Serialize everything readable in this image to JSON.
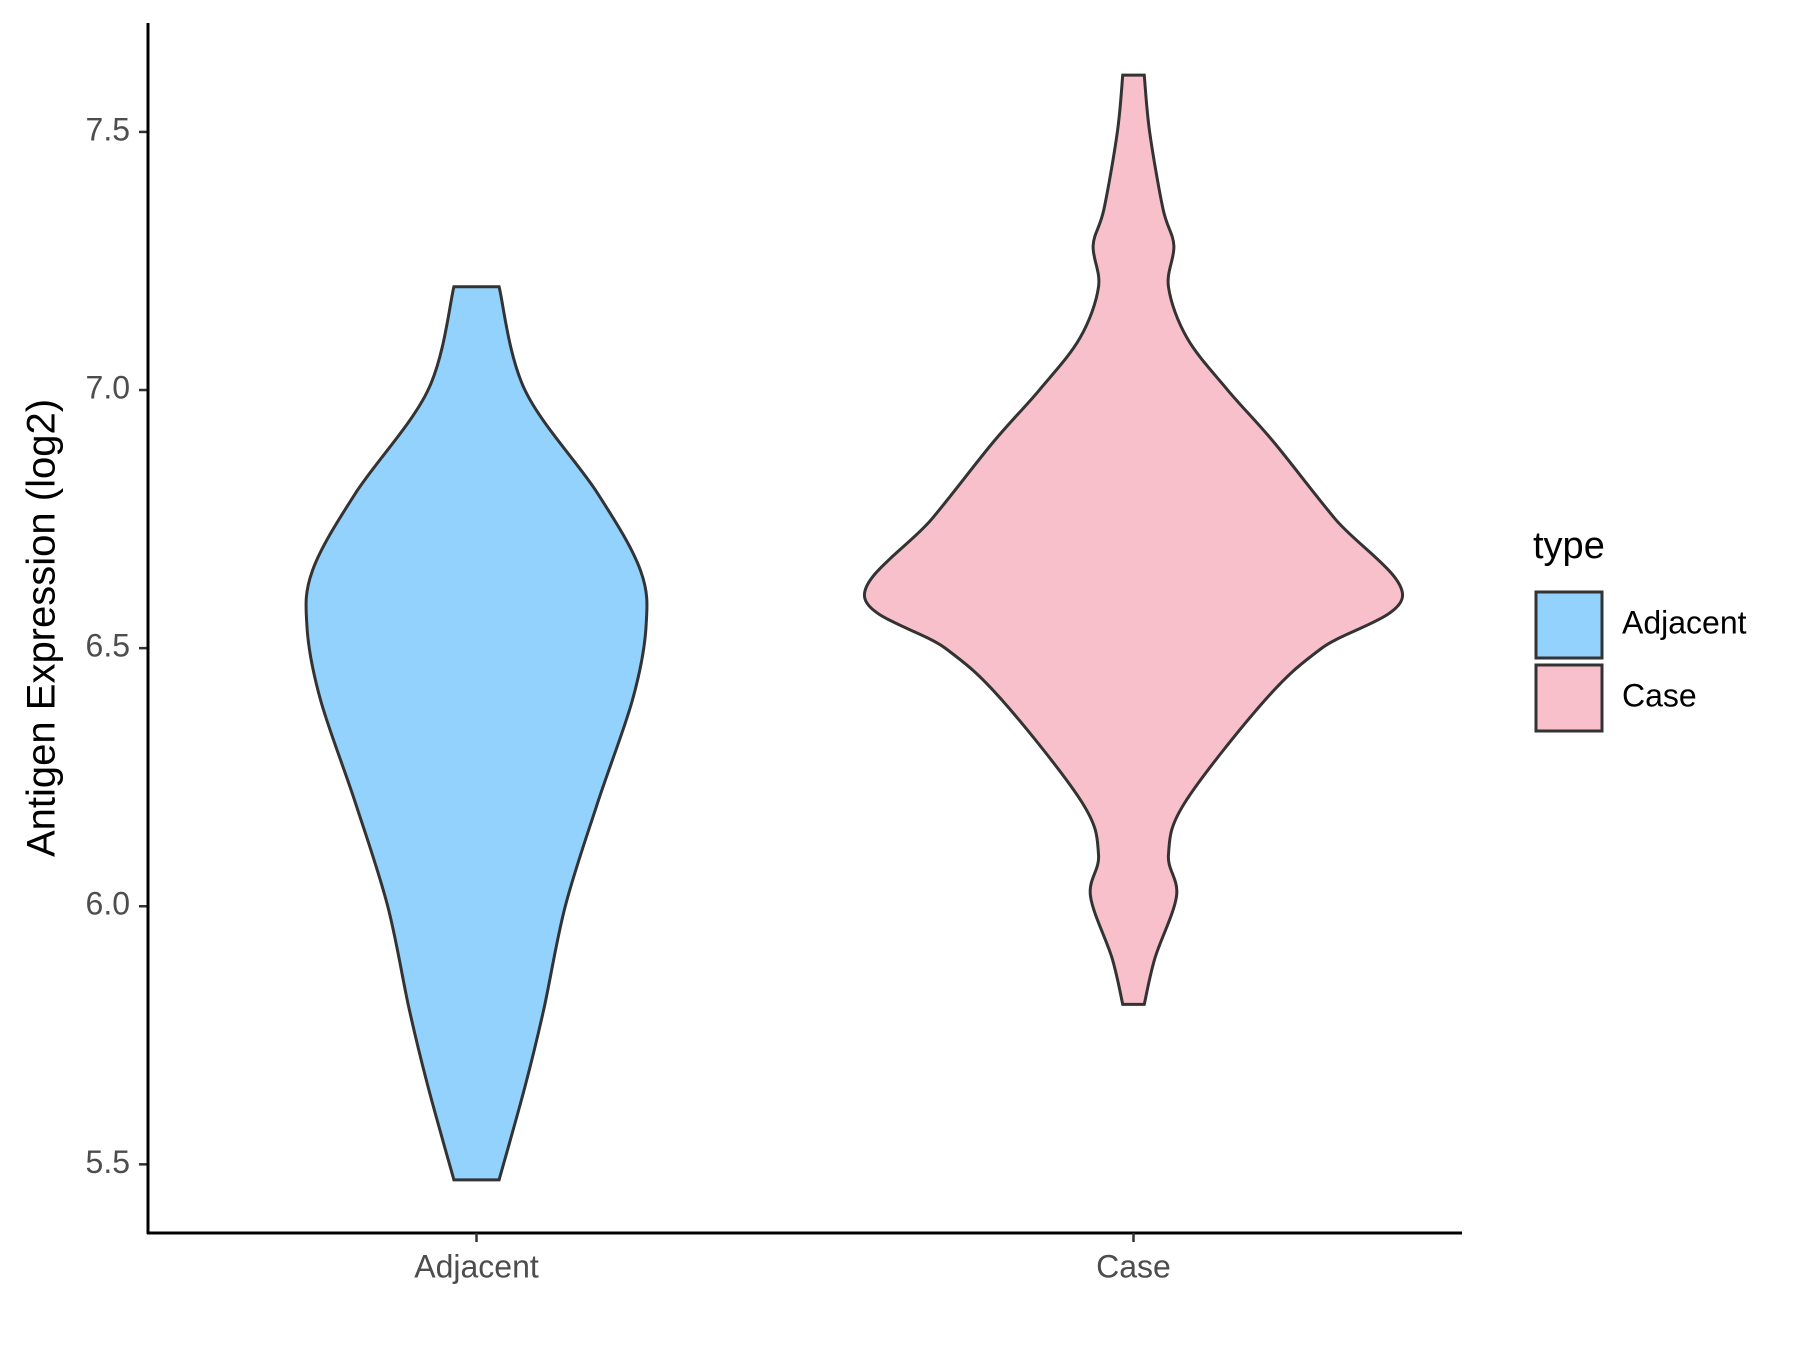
{
  "chart_data": {
    "type": "violin",
    "y_label": "Antigen Expression (log2)",
    "ylim": [
      5.367,
      7.711
    ],
    "yticks": [
      5.5,
      {
        "value": 6,
        "label": "6.0"
      },
      {
        "value": 6.5,
        "label": "6.5"
      },
      {
        "value": 7,
        "label": "7.0"
      },
      7.5
    ],
    "legend_title": "type",
    "legend_position": "right",
    "series": [
      {
        "name": "Adjacent",
        "color": "#93d2fd",
        "y": [
          7.2,
          7.0,
          6.8,
          6.65,
          6.54,
          6.4,
          6.2,
          6.0,
          5.8,
          5.65,
          5.47
        ],
        "density": [
          0.084,
          0.18,
          0.45,
          0.61,
          0.63,
          0.58,
          0.45,
          0.33,
          0.25,
          0.18,
          0.084
        ]
      },
      {
        "name": "Case",
        "color": "#f7c0cb",
        "y": [
          7.61,
          7.5,
          7.35,
          7.28,
          7.2,
          7.1,
          7.0,
          6.9,
          6.75,
          6.6,
          6.5,
          6.4,
          6.2,
          6.1,
          6.02,
          5.9,
          5.81
        ],
        "density": [
          0.04,
          0.06,
          0.11,
          0.15,
          0.13,
          0.2,
          0.35,
          0.52,
          0.75,
          1.0,
          0.7,
          0.49,
          0.19,
          0.13,
          0.16,
          0.08,
          0.04
        ]
      }
    ]
  }
}
